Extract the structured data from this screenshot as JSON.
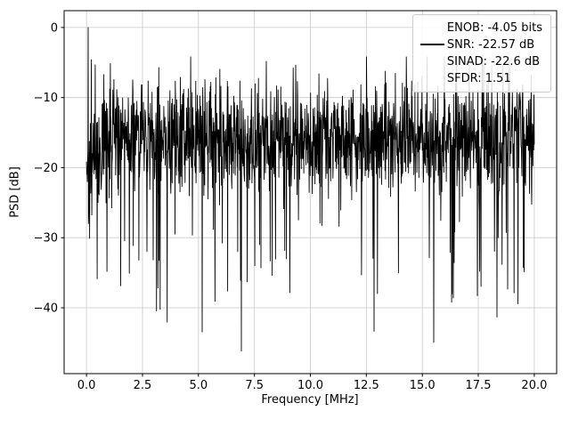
{
  "figure": {
    "background": "#ffffff",
    "title": ""
  },
  "chart_data": {
    "type": "line",
    "title": "",
    "xlabel": "Frequency [MHz]",
    "ylabel": "PSD [dB]",
    "xlim": [
      -1,
      21
    ],
    "ylim": [
      -49.4,
      2.4
    ],
    "xticks": [
      0.0,
      2.5,
      5.0,
      7.5,
      10.0,
      12.5,
      15.0,
      17.5,
      20.0
    ],
    "xtick_labels": [
      "0.0",
      "2.5",
      "5.0",
      "7.5",
      "10.0",
      "12.5",
      "15.0",
      "17.5",
      "20.0"
    ],
    "yticks": [
      0,
      -10,
      -20,
      -30,
      -40
    ],
    "ytick_labels": [
      "0",
      "−10",
      "−20",
      "−30",
      "−40"
    ],
    "grid": true,
    "grid_color": "#c9c9c9",
    "line_color": "#000000",
    "legend_position": "top-right",
    "legend_entries": [
      "ENOB: -4.05 bits",
      "SNR: -22.57 dB",
      "SINAD: -22.6 dB",
      "SFDR: 1.51"
    ],
    "signal": {
      "kind": "noise-spectrum",
      "x_range_mhz": [
        0,
        20
      ],
      "peak": {
        "x_mhz": 0.07,
        "psd_db": 0
      },
      "dip_after_peak_db": -28,
      "noise_floor_mean_db": -16,
      "noise_band_db": [
        -25,
        -7
      ],
      "noise_top_envelope_db": -4.2,
      "noise_deep_dips_db": -47.5,
      "left_edge_suppression_mhz": 1.2,
      "n_points": 1600,
      "seed": 42
    }
  }
}
